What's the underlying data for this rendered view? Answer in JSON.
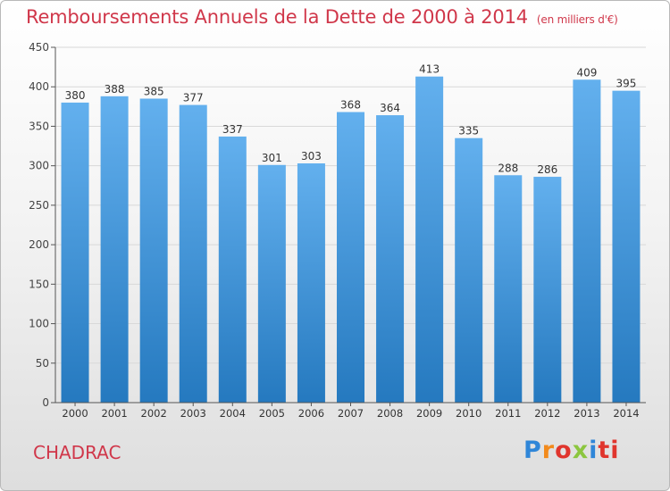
{
  "header": {
    "title": "Remboursements Annuels de la Dette de 2000 à 2014",
    "unit": "(en milliers d'€)"
  },
  "footer": {
    "commune": "CHADRAC",
    "logo": [
      "P",
      "r",
      "o",
      "x",
      "i",
      "ti"
    ]
  },
  "colors": {
    "title": "#d0374a",
    "bar_top": "#63b0ee",
    "bar_bottom": "#2579bf",
    "grid": "#d8d8d8",
    "axis": "#555555"
  },
  "chart_data": {
    "type": "bar",
    "title": "Remboursements Annuels de la Dette de 2000 à 2014",
    "xlabel": "",
    "ylabel": "",
    "ylim": [
      0,
      450
    ],
    "yticks": [
      0,
      50,
      100,
      150,
      200,
      250,
      300,
      350,
      400,
      450
    ],
    "grid": true,
    "categories": [
      "2000",
      "2001",
      "2002",
      "2003",
      "2004",
      "2005",
      "2006",
      "2007",
      "2008",
      "2009",
      "2010",
      "2011",
      "2012",
      "2013",
      "2014"
    ],
    "values": [
      380,
      388,
      385,
      377,
      337,
      301,
      303,
      368,
      364,
      413,
      335,
      288,
      286,
      409,
      395
    ]
  }
}
